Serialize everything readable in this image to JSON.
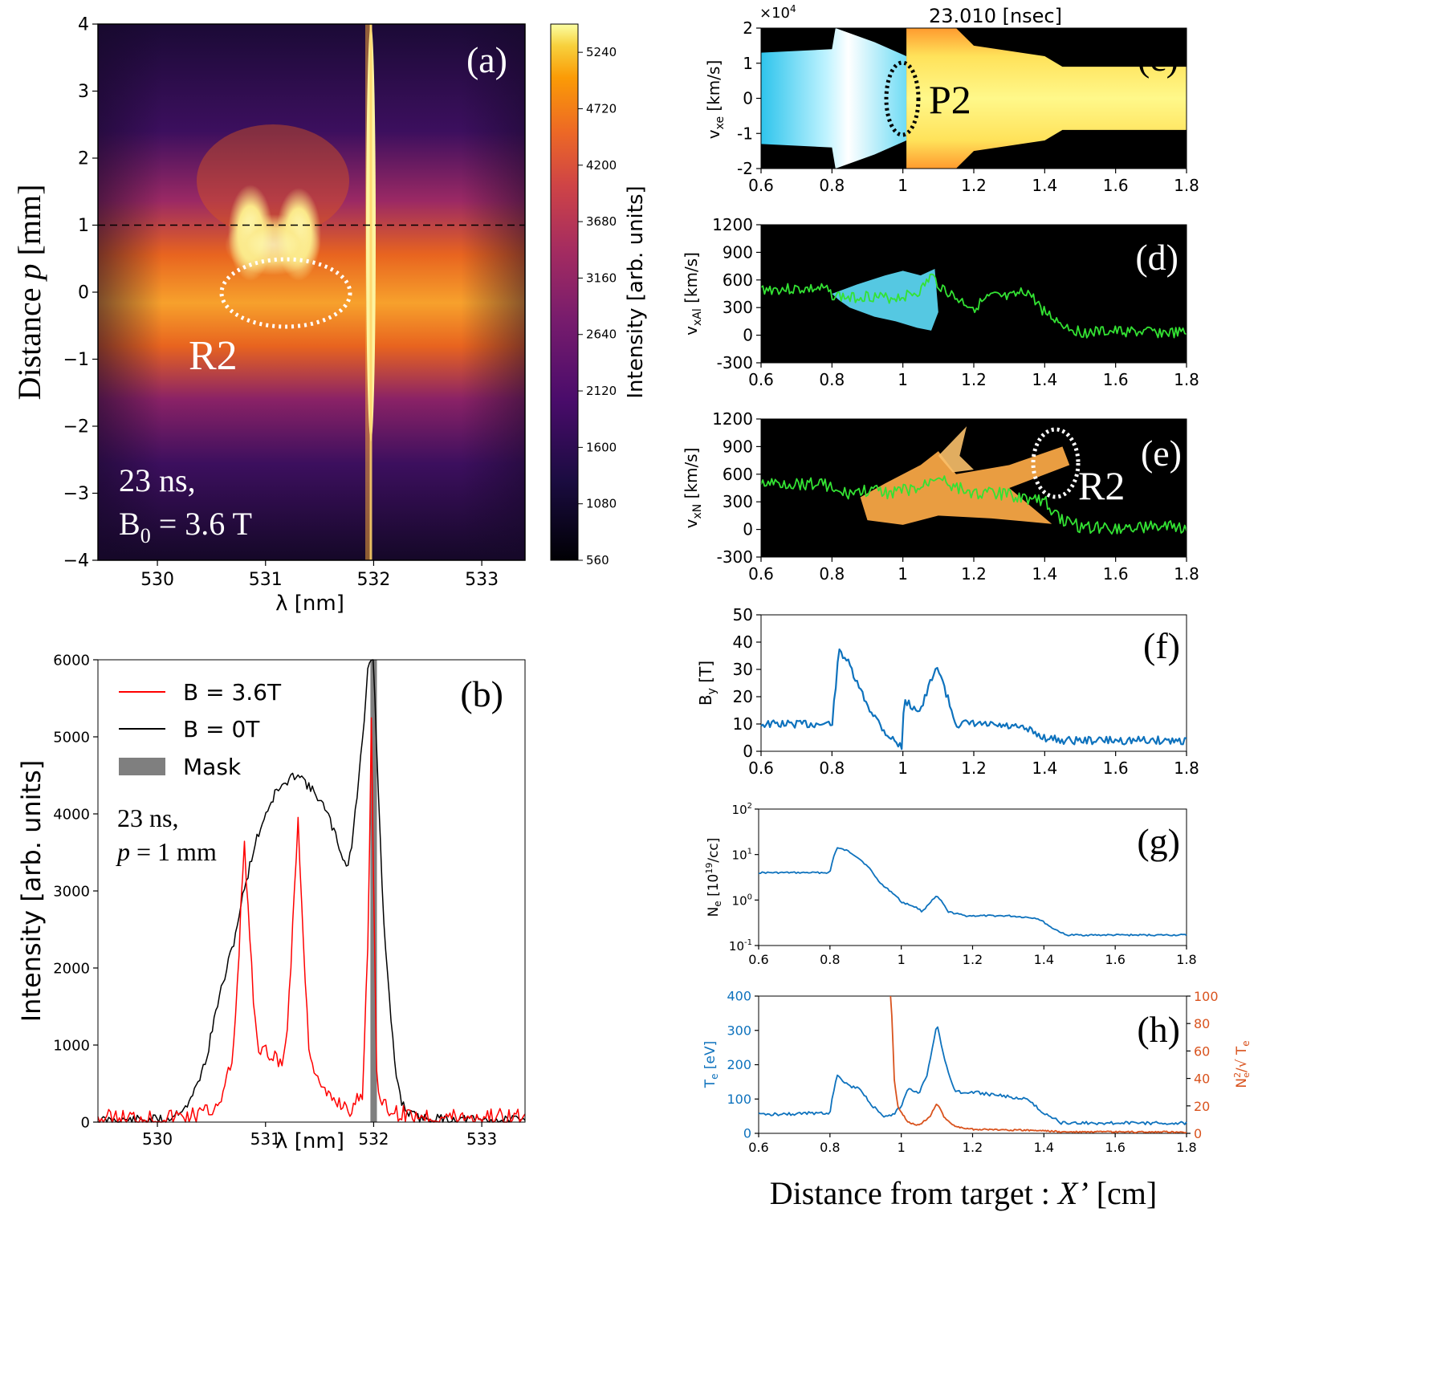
{
  "colors": {
    "inferno_dark": "#100626",
    "inferno_purple": "#4b0f6b",
    "inferno_orange": "#f07f1a",
    "inferno_yellow": "#fbfca2",
    "red_line": "#ff0000",
    "black_line": "#000000",
    "mask_gray": "#7f7f7f",
    "green_line": "#33e233",
    "blue_line": "#0e72bd",
    "orange_line": "#d9531e",
    "cyan": "#36d6f0",
    "pic_yellow": "#fff45a"
  },
  "chart_data": [
    {
      "id": "a",
      "type": "heatmap",
      "panel_label": "(a)",
      "xlabel": "λ [nm]",
      "ylabel_text": "Distance",
      "ylabel_var": "p",
      "ylabel_unit": "[mm]",
      "xlim": [
        529.45,
        533.4
      ],
      "ylim": [
        -4,
        4
      ],
      "xticks": [
        530,
        531,
        532,
        533
      ],
      "xtick_labels": [
        "530",
        "531",
        "532",
        "533"
      ],
      "yticks": [
        -4,
        -3,
        -2,
        -1,
        0,
        1,
        2,
        3,
        4
      ],
      "ytick_labels": [
        "−4",
        "−3",
        "−2",
        "−1",
        "0",
        "1",
        "2",
        "3",
        "4"
      ],
      "dashed_line_p": 1,
      "annotation_time": "23 ns,",
      "annotation_field_main": "B",
      "annotation_field_sub": "0",
      "annotation_field_rest": " = 3.6 T",
      "region_label": "R2",
      "colorbar": {
        "label": "Intensity [arb. units]",
        "min": 560,
        "max": 5500,
        "ticks": [
          560,
          1080,
          1600,
          2120,
          2640,
          3160,
          3680,
          4200,
          4720,
          5240
        ],
        "tick_labels": [
          "560",
          "1080",
          "1600",
          "2120",
          "2640",
          "3160",
          "3680",
          "4200",
          "4720",
          "5240"
        ]
      }
    },
    {
      "id": "b",
      "type": "line",
      "panel_label": "(b)",
      "xlabel": "λ [nm]",
      "ylabel": "Intensity [arb. units]",
      "xlim": [
        529.45,
        533.4
      ],
      "ylim": [
        0,
        6000
      ],
      "xticks": [
        530,
        531,
        532,
        533
      ],
      "xtick_labels": [
        "530",
        "531",
        "532",
        "533"
      ],
      "yticks": [
        0,
        1000,
        2000,
        3000,
        4000,
        5000,
        6000
      ],
      "ytick_labels": [
        "0",
        "1000",
        "2000",
        "3000",
        "4000",
        "5000",
        "6000"
      ],
      "mask_range": [
        531.97,
        532.03
      ],
      "annotation_time": "23 ns,",
      "annotation_p_var": "p",
      "annotation_p_rest": " = 1 mm",
      "legend": [
        "B = 3.6T",
        "B = 0T",
        "Mask"
      ],
      "series": [
        {
          "name": "B = 3.6T",
          "x": [
            529.45,
            529.7,
            530.0,
            530.3,
            530.5,
            530.62,
            530.7,
            530.75,
            530.8,
            530.85,
            530.9,
            530.95,
            531.0,
            531.05,
            531.1,
            531.15,
            531.2,
            531.25,
            531.3,
            531.35,
            531.4,
            531.5,
            531.6,
            531.7,
            531.8,
            531.9,
            531.95,
            531.98,
            532.0,
            532.03,
            532.08,
            532.15,
            532.3,
            532.5,
            532.8,
            533.1,
            533.4
          ],
          "y": [
            50,
            60,
            60,
            80,
            150,
            400,
            900,
            2000,
            3700,
            2500,
            1300,
            800,
            1000,
            700,
            900,
            650,
            1200,
            2500,
            3950,
            2300,
            1000,
            450,
            300,
            250,
            150,
            400,
            2500,
            5300,
            3000,
            600,
            200,
            150,
            100,
            80,
            70,
            80,
            60
          ]
        },
        {
          "name": "B = 0T",
          "x": [
            529.45,
            529.8,
            530.1,
            530.3,
            530.45,
            530.55,
            530.7,
            530.8,
            530.9,
            531.0,
            531.1,
            531.2,
            531.3,
            531.4,
            531.5,
            531.6,
            531.7,
            531.75,
            531.8,
            531.85,
            531.9,
            531.95,
            532.0,
            532.05,
            532.1,
            532.15,
            532.2,
            532.25,
            532.3,
            532.4,
            532.6,
            533.0,
            533.4
          ],
          "y": [
            20,
            30,
            40,
            250,
            800,
            1500,
            2300,
            3000,
            3600,
            4000,
            4300,
            4400,
            4550,
            4350,
            4200,
            3900,
            3500,
            3300,
            3600,
            4300,
            5000,
            6000,
            6000,
            4000,
            2400,
            1500,
            700,
            300,
            150,
            60,
            40,
            30,
            20
          ]
        }
      ]
    },
    {
      "id": "c",
      "type": "heatmap",
      "panel_label": "(c)",
      "title": "23.010 [nsec]",
      "ylabel_main": "v",
      "ylabel_sub": "xe",
      "ylabel_unit": " [km/s]",
      "exponent_base": "×10",
      "exponent_power": "4",
      "xlim": [
        0.6,
        1.8
      ],
      "ylim": [
        -2,
        2
      ],
      "xticks": [
        0.6,
        0.8,
        1,
        1.2,
        1.4,
        1.6,
        1.8
      ],
      "xtick_labels": [
        "0.6",
        "0.8",
        "1",
        "1.2",
        "1.4",
        "1.6",
        "1.8"
      ],
      "yticks": [
        -2,
        -1,
        0,
        1,
        2
      ],
      "ytick_labels": [
        "-2",
        "-1",
        "0",
        "1",
        "2"
      ],
      "region_label": "P2"
    },
    {
      "id": "d",
      "type": "scatter",
      "panel_label": "(d)",
      "ylabel_main": "v",
      "ylabel_sub": "xAl",
      "ylabel_unit": " [km/s]",
      "xlim": [
        0.6,
        1.8
      ],
      "ylim": [
        -300,
        1200
      ],
      "xticks": [
        0.6,
        0.8,
        1,
        1.2,
        1.4,
        1.6,
        1.8
      ],
      "xtick_labels": [
        "0.6",
        "0.8",
        "1",
        "1.2",
        "1.4",
        "1.6",
        "1.8"
      ],
      "yticks": [
        -300,
        0,
        300,
        600,
        900,
        1200
      ],
      "ytick_labels": [
        "-300",
        "0",
        "300",
        "600",
        "900",
        "1200"
      ],
      "series": [
        {
          "name": "green",
          "x": [
            0.6,
            0.78,
            0.8,
            0.85,
            0.9,
            0.95,
            1.0,
            1.05,
            1.08,
            1.1,
            1.15,
            1.2,
            1.25,
            1.3,
            1.35,
            1.4,
            1.45,
            1.5,
            1.6,
            1.7,
            1.8
          ],
          "y": [
            500,
            500,
            440,
            400,
            430,
            400,
            420,
            480,
            650,
            550,
            400,
            300,
            420,
            400,
            480,
            250,
            120,
            30,
            40,
            30,
            20
          ]
        }
      ]
    },
    {
      "id": "e",
      "type": "scatter",
      "panel_label": "(e)",
      "ylabel_main": "v",
      "ylabel_sub": "xN",
      "ylabel_unit": " [km/s]",
      "xlim": [
        0.6,
        1.8
      ],
      "ylim": [
        -300,
        1200
      ],
      "xticks": [
        0.6,
        0.8,
        1,
        1.2,
        1.4,
        1.6,
        1.8
      ],
      "xtick_labels": [
        "0.6",
        "0.8",
        "1",
        "1.2",
        "1.4",
        "1.6",
        "1.8"
      ],
      "yticks": [
        -300,
        0,
        300,
        600,
        900,
        1200
      ],
      "ytick_labels": [
        "-300",
        "0",
        "300",
        "600",
        "900",
        "1200"
      ],
      "region_label": "R2",
      "series": [
        {
          "name": "green",
          "x": [
            0.6,
            0.78,
            0.82,
            0.9,
            0.95,
            1.0,
            1.05,
            1.1,
            1.15,
            1.2,
            1.3,
            1.4,
            1.45,
            1.5,
            1.6,
            1.7,
            1.8
          ],
          "y": [
            500,
            500,
            380,
            420,
            400,
            420,
            440,
            600,
            450,
            400,
            380,
            300,
            100,
            30,
            20,
            30,
            20
          ]
        }
      ]
    },
    {
      "id": "f",
      "type": "line",
      "panel_label": "(f)",
      "ylabel_main": "B",
      "ylabel_sub": "y",
      "ylabel_unit": " [T]",
      "xlim": [
        0.6,
        1.8
      ],
      "ylim": [
        0,
        50
      ],
      "xticks": [
        0.6,
        0.8,
        1,
        1.2,
        1.4,
        1.6,
        1.8
      ],
      "xtick_labels": [
        "0.6",
        "0.8",
        "1",
        "1.2",
        "1.4",
        "1.6",
        "1.8"
      ],
      "yticks": [
        0,
        10,
        20,
        30,
        40,
        50
      ],
      "ytick_labels": [
        "0",
        "10",
        "20",
        "30",
        "40",
        "50"
      ],
      "series": [
        {
          "name": "By",
          "x": [
            0.6,
            0.8,
            0.805,
            0.82,
            0.84,
            0.87,
            0.9,
            0.95,
            1.0,
            1.002,
            1.02,
            1.05,
            1.08,
            1.1,
            1.12,
            1.15,
            1.2,
            1.3,
            1.35,
            1.4,
            1.45,
            1.6,
            1.8
          ],
          "y": [
            10,
            10,
            16,
            37,
            34,
            25,
            17,
            7,
            1,
            18,
            17,
            15,
            26,
            31,
            22,
            10,
            10,
            9,
            8,
            5,
            4,
            4,
            4
          ]
        }
      ]
    },
    {
      "id": "g",
      "type": "line",
      "panel_label": "(g)",
      "ylabel_main": "N",
      "ylabel_sub": "e",
      "ylabel_unit": " [10",
      "ylabel_unit_sup": "19",
      "ylabel_unit_end": "/cc]",
      "yscale": "log",
      "xlim": [
        0.6,
        1.8
      ],
      "ylim": [
        0.1,
        100
      ],
      "xticks": [
        0.6,
        0.8,
        1,
        1.2,
        1.4,
        1.6,
        1.8
      ],
      "xtick_labels": [
        "0.6",
        "0.8",
        "1",
        "1.2",
        "1.4",
        "1.6",
        "1.8"
      ],
      "yticks": [
        0.1,
        1,
        10,
        100
      ],
      "ytick_base": "10",
      "ytick_exps": [
        "-1",
        "0",
        "1",
        "2"
      ],
      "series": [
        {
          "name": "Ne",
          "x": [
            0.6,
            0.8,
            0.805,
            0.82,
            0.85,
            0.9,
            0.93,
            0.95,
            1.0,
            1.04,
            1.06,
            1.1,
            1.13,
            1.18,
            1.3,
            1.38,
            1.42,
            1.46,
            1.6,
            1.8
          ],
          "y": [
            4,
            4,
            6,
            14,
            12,
            6,
            3,
            2,
            0.9,
            0.7,
            0.55,
            1.2,
            0.55,
            0.45,
            0.45,
            0.4,
            0.25,
            0.17,
            0.17,
            0.17
          ]
        }
      ]
    },
    {
      "id": "h",
      "type": "line",
      "panel_label": "(h)",
      "ylabel_left_main": "T",
      "ylabel_left_sub": "e",
      "ylabel_left_unit": " [eV]",
      "ylabel_right": "N²/√Tₑ",
      "ylabel_right_main": "N",
      "ylabel_right_sup": "2",
      "ylabel_right_sub": "e",
      "ylabel_right_rest": "/√ T",
      "ylabel_right_sub2": "e",
      "xlim": [
        0.6,
        1.8
      ],
      "ylim_left": [
        0,
        400
      ],
      "ylim_right": [
        0,
        100
      ],
      "xticks": [
        0.6,
        0.8,
        1,
        1.2,
        1.4,
        1.6,
        1.8
      ],
      "xtick_labels": [
        "0.6",
        "0.8",
        "1",
        "1.2",
        "1.4",
        "1.6",
        "1.8"
      ],
      "yticks_left": [
        0,
        100,
        200,
        300,
        400
      ],
      "ytick_labels_left": [
        "0",
        "100",
        "200",
        "300",
        "400"
      ],
      "yticks_right": [
        0,
        20,
        40,
        60,
        80,
        100
      ],
      "ytick_labels_right": [
        "0",
        "20",
        "40",
        "60",
        "80",
        "100"
      ],
      "series": [
        {
          "name": "Te",
          "axis": "left",
          "x": [
            0.6,
            0.8,
            0.805,
            0.82,
            0.85,
            0.88,
            0.92,
            0.95,
            0.98,
            1.0,
            1.02,
            1.05,
            1.07,
            1.1,
            1.12,
            1.15,
            1.2,
            1.35,
            1.4,
            1.45,
            1.6,
            1.8
          ],
          "y": [
            55,
            60,
            100,
            170,
            140,
            130,
            80,
            45,
            55,
            80,
            130,
            120,
            160,
            320,
            220,
            120,
            120,
            100,
            60,
            30,
            30,
            30
          ]
        },
        {
          "name": "Ne2/sqrtTe",
          "axis": "right",
          "x": [
            0.97,
            0.975,
            0.98,
            0.99,
            1.0,
            1.02,
            1.05,
            1.08,
            1.1,
            1.12,
            1.15,
            1.2,
            1.4,
            1.45,
            1.8
          ],
          "y": [
            100,
            80,
            40,
            20,
            15,
            8,
            6,
            12,
            22,
            12,
            5,
            3,
            2,
            1,
            1
          ]
        }
      ]
    }
  ],
  "common": {
    "xlabel_main": "Distance from target : ",
    "xlabel_var": "X’",
    "xlabel_unit": " [cm]"
  }
}
